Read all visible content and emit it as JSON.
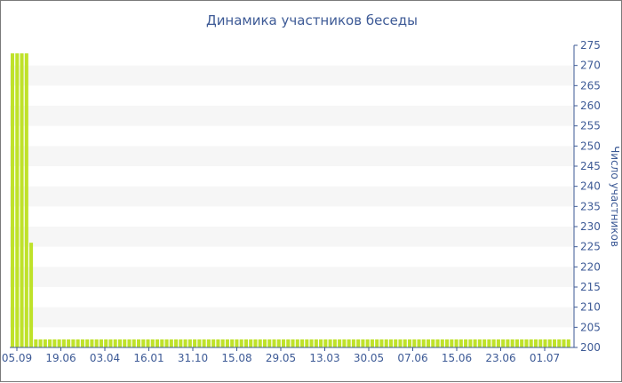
{
  "chart_data": {
    "type": "bar",
    "title": "Динамика участников беседы",
    "xlabel": "",
    "ylabel": "Число участников",
    "ylim": [
      200,
      275
    ],
    "yticks": [
      200,
      205,
      210,
      215,
      220,
      225,
      230,
      235,
      240,
      245,
      250,
      255,
      260,
      265,
      270,
      275
    ],
    "xtick_labels": [
      "05.09",
      "19.06",
      "03.04",
      "16.01",
      "31.10",
      "15.08",
      "29.05",
      "13.03",
      "30.05",
      "07.06",
      "15.06",
      "23.06",
      "01.07"
    ],
    "bar_color": "#bfe22a",
    "grid": "horizontal bands",
    "values": [
      273,
      273,
      273,
      273,
      226,
      202,
      202,
      202,
      202,
      202,
      202,
      202,
      202,
      202,
      202,
      202,
      202,
      202,
      202,
      202,
      202,
      202,
      202,
      202,
      202,
      202,
      202,
      202,
      202,
      202,
      202,
      202,
      202,
      202,
      202,
      202,
      202,
      202,
      202,
      202,
      202,
      202,
      202,
      202,
      202,
      202,
      202,
      202,
      202,
      202,
      202,
      202,
      202,
      202,
      202,
      202,
      202,
      202,
      202,
      202,
      202,
      202,
      202,
      202,
      202,
      202,
      202,
      202,
      202,
      202,
      202,
      202,
      202,
      202,
      202,
      202,
      202,
      202,
      202,
      202,
      202,
      202,
      202,
      202,
      202,
      202,
      202,
      202,
      202,
      202,
      202,
      202,
      202,
      202,
      202,
      202,
      202,
      202,
      202,
      202,
      202,
      202,
      202,
      202,
      202,
      202,
      202,
      202,
      202,
      202,
      202,
      202,
      202,
      202,
      202,
      202,
      202,
      202,
      202,
      202
    ]
  }
}
